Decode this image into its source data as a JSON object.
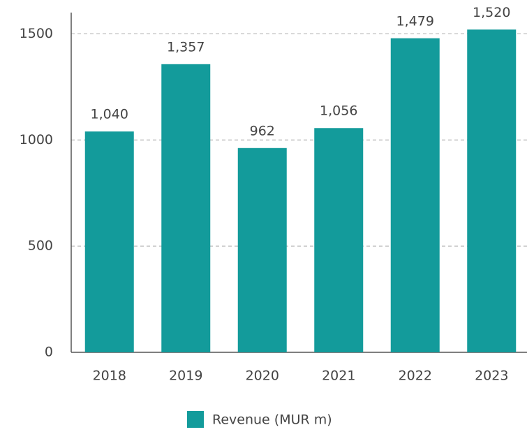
{
  "chart_data": {
    "type": "bar",
    "categories": [
      "2018",
      "2019",
      "2020",
      "2021",
      "2022",
      "2023"
    ],
    "series": [
      {
        "name": "Revenue (MUR m)",
        "color": "#139b9b",
        "values": [
          1040,
          1357,
          962,
          1056,
          1479,
          1520
        ],
        "value_labels": [
          "1,040",
          "1,357",
          "962",
          "1,056",
          "1,479",
          "1,520"
        ]
      }
    ],
    "ylim": [
      0,
      1600
    ],
    "yticks": [
      0,
      500,
      1000,
      1500
    ],
    "grid": true,
    "legend": "bottom"
  }
}
